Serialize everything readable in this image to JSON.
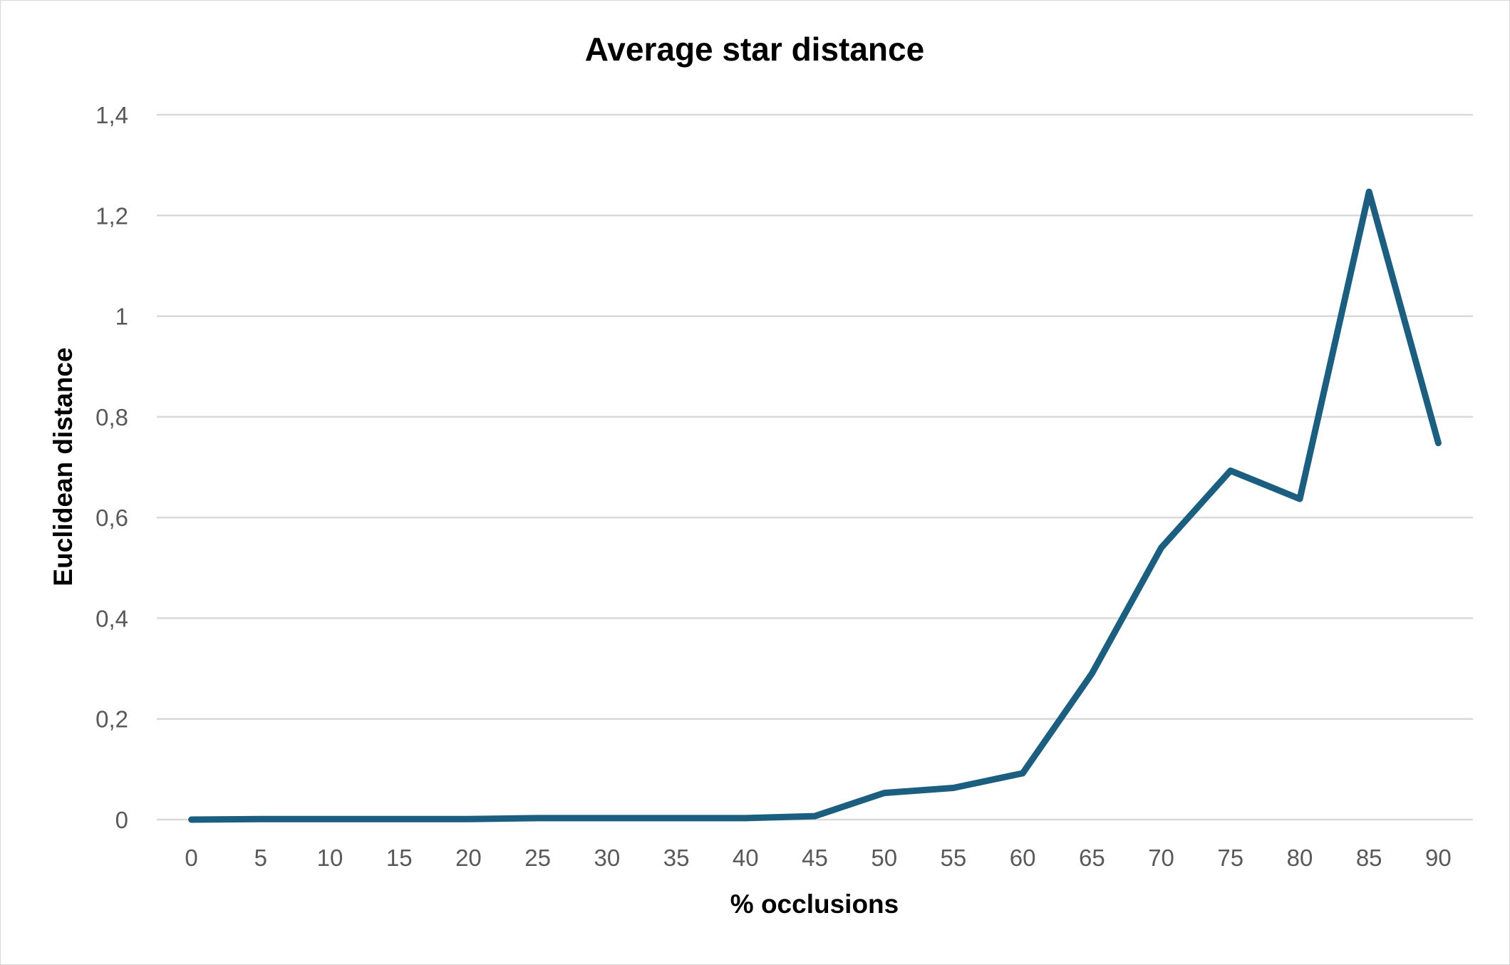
{
  "chart_data": {
    "type": "line",
    "title": "Average star distance",
    "xlabel": "% occlusions",
    "ylabel": "Euclidean distance",
    "categories": [
      "0",
      "5",
      "10",
      "15",
      "20",
      "25",
      "30",
      "35",
      "40",
      "45",
      "50",
      "55",
      "60",
      "65",
      "70",
      "75",
      "80",
      "85",
      "90"
    ],
    "y_ticks": [
      "0",
      "0,2",
      "0,4",
      "0,6",
      "0,8",
      "1",
      "1,2",
      "1,4"
    ],
    "ylim": [
      0,
      1.4
    ],
    "grid": true,
    "legend": "none",
    "series": [
      {
        "color": "#1b5e7f",
        "values": [
          0.0,
          0.001,
          0.001,
          0.001,
          0.001,
          0.003,
          0.003,
          0.003,
          0.003,
          0.007,
          0.053,
          0.063,
          0.092,
          0.29,
          0.54,
          0.693,
          0.637,
          1.247,
          0.748
        ]
      }
    ]
  }
}
